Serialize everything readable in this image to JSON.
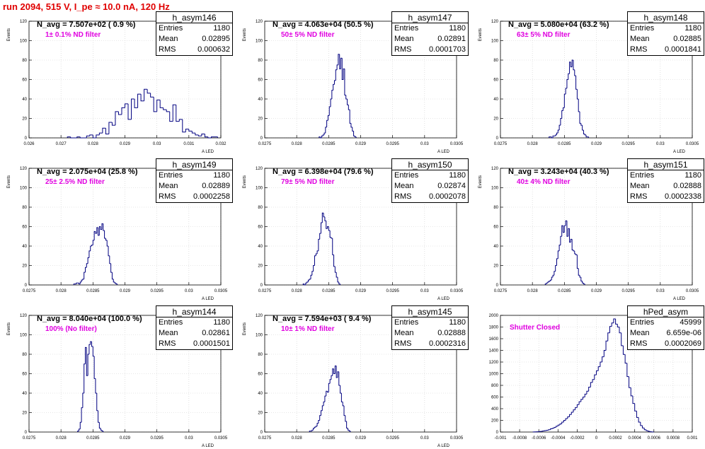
{
  "title": "run 2094,   515 V, I_pe ≈ 10.0 nA, 120 Hz",
  "panels": [
    {
      "name": "h_asym146",
      "navg": "N_avg = 7.507e+02 ( 0.9 %)",
      "filter": "1± 0.1% ND filter",
      "entries": "1180",
      "mean": "0.02895",
      "rms": "0.000632"
    },
    {
      "name": "h_asym147",
      "navg": "N_avg = 4.063e+04 (50.5 %)",
      "filter": "50± 5% ND filter",
      "entries": "1180",
      "mean": "0.02891",
      "rms": "0.0001703"
    },
    {
      "name": "h_asym148",
      "navg": "N_avg = 5.080e+04 (63.2 %)",
      "filter": "63± 5% ND filter",
      "entries": "1180",
      "mean": "0.02885",
      "rms": "0.0001841"
    },
    {
      "name": "h_asym149",
      "navg": "N_avg = 2.075e+04 (25.8 %)",
      "filter": "25± 2.5% ND filter",
      "entries": "1180",
      "mean": "0.02889",
      "rms": "0.0002258"
    },
    {
      "name": "h_asym150",
      "navg": "N_avg = 6.398e+04 (79.6 %)",
      "filter": "79± 5% ND filter",
      "entries": "1180",
      "mean": "0.02874",
      "rms": "0.0002078"
    },
    {
      "name": "h_asym151",
      "navg": "N_avg = 3.243e+04 (40.3 %)",
      "filter": "40± 4% ND filter",
      "entries": "1180",
      "mean": "0.02888",
      "rms": "0.0002338"
    },
    {
      "name": "h_asym144",
      "navg": "N_avg = 8.040e+04 (100.0 %)",
      "filter": "100% (No filter)",
      "entries": "1180",
      "mean": "0.02861",
      "rms": "0.0001501"
    },
    {
      "name": "h_asym145",
      "navg": "N_avg = 7.594e+03 ( 9.4 %)",
      "filter": "10± 1% ND filter",
      "entries": "1180",
      "mean": "0.02888",
      "rms": "0.0002316"
    },
    {
      "name": "hPed_asym",
      "navg": "",
      "filter": "Shutter Closed",
      "entries": "45999",
      "mean": "6.659e-06",
      "rms": "0.0002069"
    }
  ],
  "stat_labels": {
    "entries": "Entries",
    "mean": "Mean",
    "rms": "RMS"
  },
  "colors": {
    "title": "#e00000",
    "filter": "#e000e0",
    "line": "#000080"
  },
  "chart_data": [
    {
      "type": "histogram",
      "title": "h_asym146",
      "xlabel": "A_LED",
      "ylabel": "Events",
      "xlim": [
        0.026,
        0.032
      ],
      "ylim": [
        0,
        120
      ],
      "xticks": [
        "0.026",
        "0.027",
        "0.028",
        "0.029",
        "0.03",
        "0.031",
        "0.032"
      ],
      "yticks": [
        "0",
        "20",
        "40",
        "60",
        "80",
        "100",
        "120"
      ],
      "bins": {
        "x_start": 0.0272,
        "width": 0.0001,
        "counts": [
          1,
          0,
          0,
          1,
          0,
          0,
          2,
          3,
          0,
          3,
          5,
          10,
          4,
          16,
          13,
          27,
          24,
          31,
          35,
          19,
          40,
          31,
          45,
          38,
          50,
          46,
          42,
          27,
          39,
          31,
          29,
          27,
          17,
          34,
          17,
          19,
          6,
          9,
          7,
          5,
          3,
          2,
          4,
          1,
          0,
          1,
          1
        ]
      }
    },
    {
      "type": "histogram",
      "title": "h_asym147",
      "xlabel": "A_LED",
      "ylabel": "Events",
      "xlim": [
        0.0275,
        0.0305
      ],
      "ylim": [
        0,
        120
      ],
      "xticks": [
        "0.0275",
        "0.028",
        "0.0285",
        "0.029",
        "0.0295",
        "0.03",
        "0.0305"
      ],
      "yticks": [
        "0",
        "20",
        "40",
        "60",
        "80",
        "100",
        "120"
      ],
      "bins": {
        "x_start": 0.02835,
        "width": 2e-05,
        "counts": [
          1,
          0,
          2,
          3,
          5,
          11,
          18,
          23,
          32,
          40,
          49,
          55,
          59,
          70,
          75,
          86,
          71,
          82,
          60,
          71,
          44,
          40,
          34,
          29,
          15,
          11,
          7,
          2,
          1
        ]
      }
    },
    {
      "type": "histogram",
      "title": "h_asym148",
      "xlabel": "A_LED",
      "ylabel": "Events",
      "xlim": [
        0.0275,
        0.0305
      ],
      "ylim": [
        0,
        120
      ],
      "xticks": [
        "0.0275",
        "0.028",
        "0.0285",
        "0.029",
        "0.0295",
        "0.03",
        "0.0305"
      ],
      "yticks": [
        "0",
        "20",
        "40",
        "60",
        "80",
        "100",
        "120"
      ],
      "bins": {
        "x_start": 0.02826,
        "width": 2e-05,
        "counts": [
          1,
          1,
          0,
          2,
          2,
          3,
          5,
          8,
          13,
          20,
          28,
          31,
          45,
          51,
          60,
          66,
          78,
          73,
          80,
          70,
          64,
          50,
          40,
          27,
          15,
          13,
          8,
          4,
          3,
          1,
          1
        ]
      }
    },
    {
      "type": "histogram",
      "title": "h_asym149",
      "xlabel": "A_LED",
      "ylabel": "Events",
      "xlim": [
        0.0275,
        0.0305
      ],
      "ylim": [
        0,
        120
      ],
      "xticks": [
        "0.0275",
        "0.028",
        "0.0285",
        "0.029",
        "0.0295",
        "0.03",
        "0.0305"
      ],
      "yticks": [
        "0",
        "20",
        "40",
        "60",
        "80",
        "100",
        "120"
      ],
      "bins": {
        "x_start": 0.0282,
        "width": 2e-05,
        "counts": [
          1,
          1,
          2,
          2,
          1,
          3,
          5,
          6,
          13,
          18,
          22,
          28,
          35,
          40,
          41,
          46,
          55,
          53,
          59,
          51,
          60,
          57,
          63,
          56,
          48,
          46,
          40,
          30,
          22,
          13,
          6,
          3,
          2,
          1
        ]
      }
    },
    {
      "type": "histogram",
      "title": "h_asym150",
      "xlabel": "A_LED",
      "ylabel": "Events",
      "xlim": [
        0.0275,
        0.0305
      ],
      "ylim": [
        0,
        120
      ],
      "xticks": [
        "0.0275",
        "0.028",
        "0.0285",
        "0.029",
        "0.0295",
        "0.03",
        "0.0305"
      ],
      "yticks": [
        "0",
        "20",
        "40",
        "60",
        "80",
        "100",
        "120"
      ],
      "bins": {
        "x_start": 0.0281,
        "width": 2e-05,
        "counts": [
          1,
          0,
          2,
          3,
          5,
          6,
          10,
          14,
          20,
          30,
          32,
          35,
          47,
          53,
          64,
          74,
          70,
          66,
          58,
          60,
          56,
          49,
          48,
          31,
          19,
          13,
          8,
          3,
          1
        ]
      }
    },
    {
      "type": "histogram",
      "title": "h_asym151",
      "xlabel": "A_LED",
      "ylabel": "Events",
      "xlim": [
        0.0275,
        0.0305
      ],
      "ylim": [
        0,
        120
      ],
      "xticks": [
        "0.0275",
        "0.028",
        "0.0285",
        "0.029",
        "0.0295",
        "0.03",
        "0.0305"
      ],
      "yticks": [
        "0",
        "20",
        "40",
        "60",
        "80",
        "100",
        "120"
      ],
      "bins": {
        "x_start": 0.0282,
        "width": 2e-05,
        "counts": [
          1,
          2,
          3,
          4,
          5,
          8,
          10,
          14,
          20,
          27,
          35,
          41,
          50,
          61,
          54,
          61,
          66,
          50,
          58,
          44,
          47,
          36,
          35,
          32,
          31,
          17,
          10,
          8,
          4,
          2,
          1
        ]
      }
    },
    {
      "type": "histogram",
      "title": "h_asym144",
      "xlabel": "A_LED",
      "ylabel": "Events",
      "xlim": [
        0.0275,
        0.0305
      ],
      "ylim": [
        0,
        120
      ],
      "xticks": [
        "0.0275",
        "0.028",
        "0.0285",
        "0.029",
        "0.0295",
        "0.03",
        "0.0305"
      ],
      "yticks": [
        "0",
        "20",
        "40",
        "60",
        "80",
        "100",
        "120"
      ],
      "bins": {
        "x_start": 0.02826,
        "width": 2e-05,
        "counts": [
          1,
          3,
          10,
          25,
          40,
          70,
          87,
          58,
          80,
          90,
          93,
          88,
          78,
          55,
          40,
          22,
          10,
          4,
          2,
          1
        ]
      }
    },
    {
      "type": "histogram",
      "title": "h_asym145",
      "xlabel": "A_LED",
      "ylabel": "Events",
      "xlim": [
        0.0275,
        0.0305
      ],
      "ylim": [
        0,
        120
      ],
      "xticks": [
        "0.0275",
        "0.028",
        "0.0285",
        "0.029",
        "0.0295",
        "0.03",
        "0.0305"
      ],
      "yticks": [
        "0",
        "20",
        "40",
        "60",
        "80",
        "100",
        "120"
      ],
      "bins": {
        "x_start": 0.0282,
        "width": 2e-05,
        "counts": [
          1,
          1,
          2,
          4,
          5,
          6,
          9,
          12,
          17,
          22,
          27,
          31,
          37,
          42,
          41,
          50,
          54,
          58,
          65,
          60,
          68,
          56,
          62,
          48,
          40,
          31,
          27,
          17,
          11,
          4,
          2,
          1
        ]
      }
    },
    {
      "type": "histogram",
      "title": "hPed_asym",
      "xlabel": "",
      "ylabel": "",
      "xlim": [
        -0.001,
        0.001
      ],
      "ylim": [
        0,
        2000
      ],
      "xticks": [
        "-0.001",
        "-0.0008",
        "-0.0006",
        "-0.0004",
        "-0.0002",
        "0",
        "0.0002",
        "0.0004",
        "0.0006",
        "0.0008",
        "0.001"
      ],
      "yticks": [
        "0",
        "200",
        "400",
        "600",
        "800",
        "1000",
        "1200",
        "1400",
        "1600",
        "1800",
        "2000"
      ],
      "bins": {
        "x_start": -0.00066,
        "width": 2e-05,
        "counts": [
          2,
          3,
          5,
          8,
          12,
          18,
          25,
          30,
          40,
          55,
          65,
          80,
          100,
          120,
          140,
          170,
          200,
          230,
          260,
          300,
          340,
          380,
          420,
          470,
          520,
          560,
          600,
          650,
          700,
          770,
          850,
          900,
          980,
          1050,
          1120,
          1200,
          1290,
          1400,
          1560,
          1700,
          1810,
          1870,
          1940,
          1850,
          1800,
          1700,
          1480,
          1330,
          1180,
          950,
          760,
          620,
          490,
          360,
          250,
          170,
          110,
          70,
          40,
          22,
          12,
          5,
          2
        ]
      }
    }
  ]
}
